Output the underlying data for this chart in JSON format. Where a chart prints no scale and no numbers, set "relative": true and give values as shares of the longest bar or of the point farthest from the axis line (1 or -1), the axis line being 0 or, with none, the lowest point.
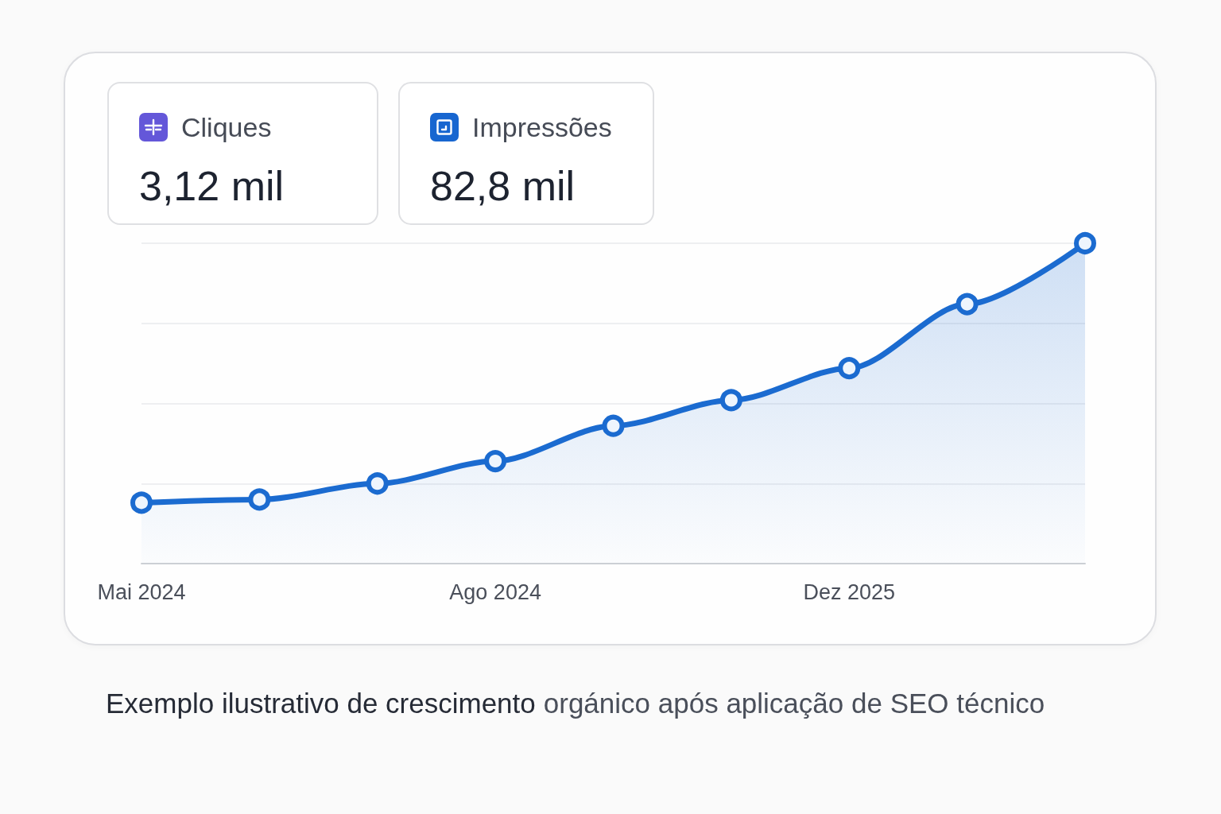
{
  "chart_data": {
    "type": "area",
    "relative": true,
    "categories": [
      "Mai 2024",
      null,
      null,
      "Ago 2024",
      null,
      null,
      "Dez 2025",
      null,
      null
    ],
    "values": [
      0.19,
      0.2,
      0.25,
      0.32,
      0.43,
      0.51,
      0.61,
      0.81,
      1
    ],
    "color": "#1b6bd0",
    "marker": "circle",
    "grid": "y",
    "annotations": [
      "Cliques",
      "3,12 mil",
      "Impressões",
      "82,8 mil",
      "Exemplo ilustrativo de crescimento",
      "orgánico após aplicação de SEO técnico"
    ]
  }
}
